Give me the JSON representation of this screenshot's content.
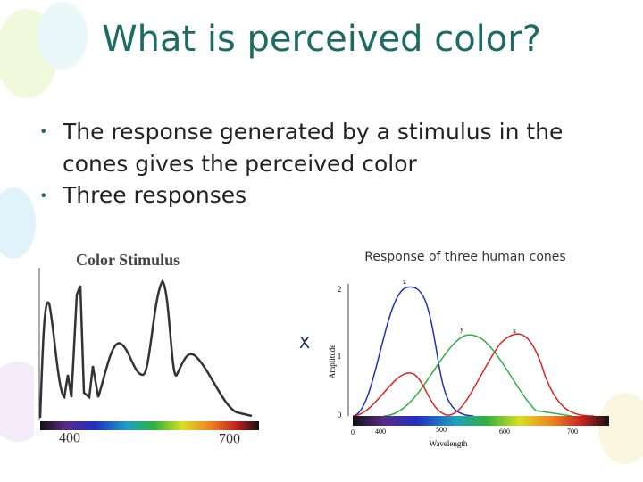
{
  "title": "What is perceived color?",
  "bullets": [
    "The response generated by a stimulus in the cones gives the perceived color",
    "Three responses"
  ],
  "stimulus": {
    "title": "Color Stimulus",
    "x_labels": [
      "400",
      "700"
    ]
  },
  "operator": "X",
  "cones": {
    "caption": "Response of three human cones",
    "y_label": "Amplitude",
    "x_label": "Wavelength",
    "y_ticks": [
      "2",
      "1",
      "0"
    ],
    "x_ticks": [
      "0",
      "400",
      "500",
      "600",
      "700"
    ],
    "curve_labels": [
      "z",
      "y",
      "x"
    ]
  }
}
